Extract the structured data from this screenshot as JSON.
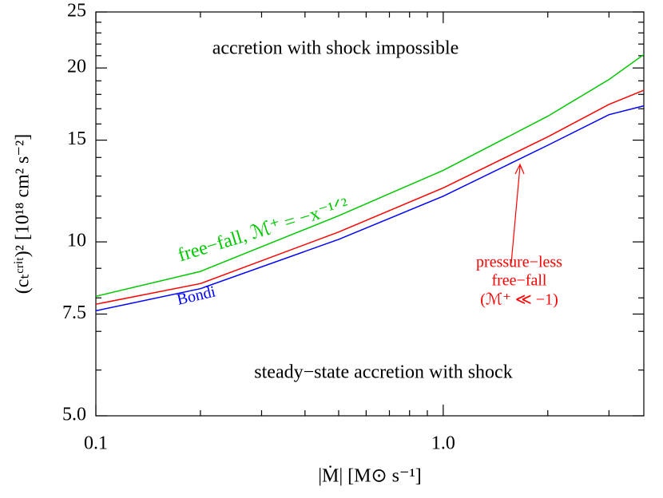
{
  "chart_data": {
    "type": "line",
    "xlabel": "|Ṁ| [M⊙ s⁻¹]",
    "ylabel": "(cₜᶜʳⁱᵗ)² [10¹⁸ cm² s⁻²]",
    "xscale": "log",
    "yscale": "log",
    "xlim": [
      0.1,
      3.78
    ],
    "ylim": [
      5,
      25
    ],
    "xticks": [
      0.1,
      {
        "value": 1,
        "label": "1.0"
      }
    ],
    "xminorticks": [
      0.2,
      0.3,
      0.4,
      0.5,
      0.6,
      0.7,
      0.8,
      0.9,
      2,
      3
    ],
    "yticks": [
      {
        "value": 5,
        "label": "5.0"
      },
      {
        "value": 7.5,
        "label": "7.5"
      },
      10,
      15,
      20,
      25
    ],
    "yminorticks": [
      6,
      7,
      8,
      9,
      11,
      12,
      13,
      14,
      16,
      17,
      18,
      19,
      21,
      22,
      23,
      24
    ],
    "x": [
      0.1,
      0.2,
      0.5,
      1.0,
      2.0,
      3.0,
      3.78
    ],
    "series": [
      {
        "color": "#00c800",
        "values": [
          8.05,
          8.89,
          11.1,
          13.3,
          16.5,
          19.1,
          21.1
        ]
      },
      {
        "color": "#ff0000",
        "values": [
          7.8,
          8.47,
          10.4,
          12.4,
          15.2,
          17.3,
          18.3
        ]
      },
      {
        "color": "#0000ff",
        "values": [
          7.6,
          8.3,
          10.1,
          12.0,
          14.7,
          16.6,
          17.2
        ]
      }
    ],
    "annotations": [
      {
        "text": "accretion with shock impossible",
        "color": "#000000"
      },
      {
        "text": "steady−state accretion with shock",
        "color": "#000000"
      },
      {
        "text": "free−fall, ℳ⁺ = −x⁻¹ᐟ²",
        "color": "#00c800"
      },
      {
        "text": "Bondi",
        "color": "#0000ff"
      },
      {
        "text": "pressure−less",
        "color": "#ff0000"
      },
      {
        "text": "free−fall",
        "color": "#ff0000"
      },
      {
        "text": "(ℳ⁺ ≪ −1)",
        "color": "#ff0000"
      }
    ]
  }
}
